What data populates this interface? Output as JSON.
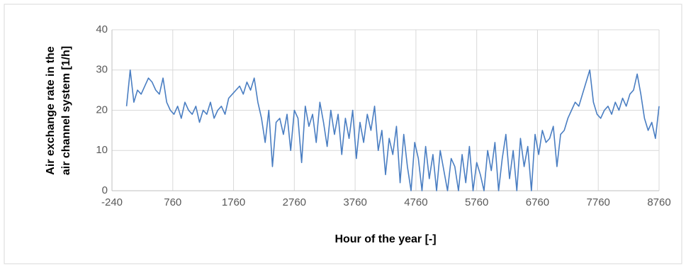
{
  "chart_data": {
    "type": "line",
    "xlabel": "Hour of the year [-]",
    "ylabel": [
      "Air exchange rate in the",
      "air channel system [1/h]"
    ],
    "xlim": [
      -240,
      8760
    ],
    "xticks": [
      -240,
      760,
      1760,
      2760,
      3760,
      4760,
      5760,
      6760,
      7760,
      8760
    ],
    "ylim": [
      0,
      40
    ],
    "yticks": [
      0,
      10,
      20,
      30,
      40
    ],
    "grid": true,
    "series": [
      {
        "color": "#4a7ec2",
        "x": [
          0,
          60,
          120,
          180,
          240,
          300,
          360,
          420,
          480,
          540,
          600,
          660,
          720,
          780,
          840,
          900,
          960,
          1020,
          1080,
          1140,
          1200,
          1260,
          1320,
          1380,
          1440,
          1500,
          1560,
          1620,
          1680,
          1740,
          1800,
          1860,
          1920,
          1980,
          2040,
          2100,
          2160,
          2220,
          2280,
          2340,
          2400,
          2460,
          2520,
          2580,
          2640,
          2700,
          2760,
          2820,
          2880,
          2940,
          3000,
          3060,
          3120,
          3180,
          3240,
          3300,
          3360,
          3420,
          3480,
          3540,
          3600,
          3660,
          3720,
          3780,
          3840,
          3900,
          3960,
          4020,
          4080,
          4140,
          4200,
          4260,
          4320,
          4380,
          4440,
          4500,
          4560,
          4620,
          4680,
          4740,
          4800,
          4860,
          4920,
          4980,
          5040,
          5100,
          5160,
          5220,
          5280,
          5340,
          5400,
          5460,
          5520,
          5580,
          5640,
          5700,
          5760,
          5820,
          5880,
          5940,
          6000,
          6060,
          6120,
          6180,
          6240,
          6300,
          6360,
          6420,
          6480,
          6540,
          6600,
          6660,
          6720,
          6780,
          6840,
          6900,
          6960,
          7020,
          7080,
          7140,
          7200,
          7260,
          7320,
          7380,
          7440,
          7500,
          7560,
          7620,
          7680,
          7740,
          7800,
          7860,
          7920,
          7980,
          8040,
          8100,
          8160,
          8220,
          8280,
          8340,
          8400,
          8460,
          8520,
          8580,
          8640,
          8700,
          8760
        ],
        "values": [
          21,
          30,
          22,
          25,
          24,
          26,
          28,
          27,
          25,
          24,
          28,
          22,
          20,
          19,
          21,
          18,
          22,
          20,
          19,
          21,
          17,
          20,
          19,
          22,
          18,
          20,
          21,
          19,
          23,
          24,
          25,
          26,
          24,
          27,
          25,
          28,
          22,
          18,
          12,
          20,
          6,
          17,
          18,
          14,
          19,
          10,
          20,
          18,
          7,
          21,
          16,
          19,
          12,
          22,
          17,
          11,
          20,
          14,
          19,
          9,
          18,
          13,
          20,
          8,
          17,
          12,
          19,
          15,
          21,
          10,
          15,
          4,
          13,
          9,
          16,
          2,
          14,
          6,
          0,
          12,
          8,
          0,
          11,
          3,
          9,
          0,
          10,
          5,
          0,
          8,
          6,
          0,
          9,
          2,
          11,
          0,
          7,
          4,
          0,
          10,
          5,
          12,
          0,
          8,
          14,
          3,
          10,
          0,
          13,
          6,
          11,
          0,
          14,
          9,
          15,
          12,
          13,
          16,
          6,
          14,
          15,
          18,
          20,
          22,
          21,
          24,
          27,
          30,
          22,
          19,
          18,
          20,
          21,
          19,
          22,
          20,
          23,
          21,
          24,
          25,
          29,
          24,
          18,
          15,
          17,
          13,
          21
        ]
      }
    ]
  }
}
